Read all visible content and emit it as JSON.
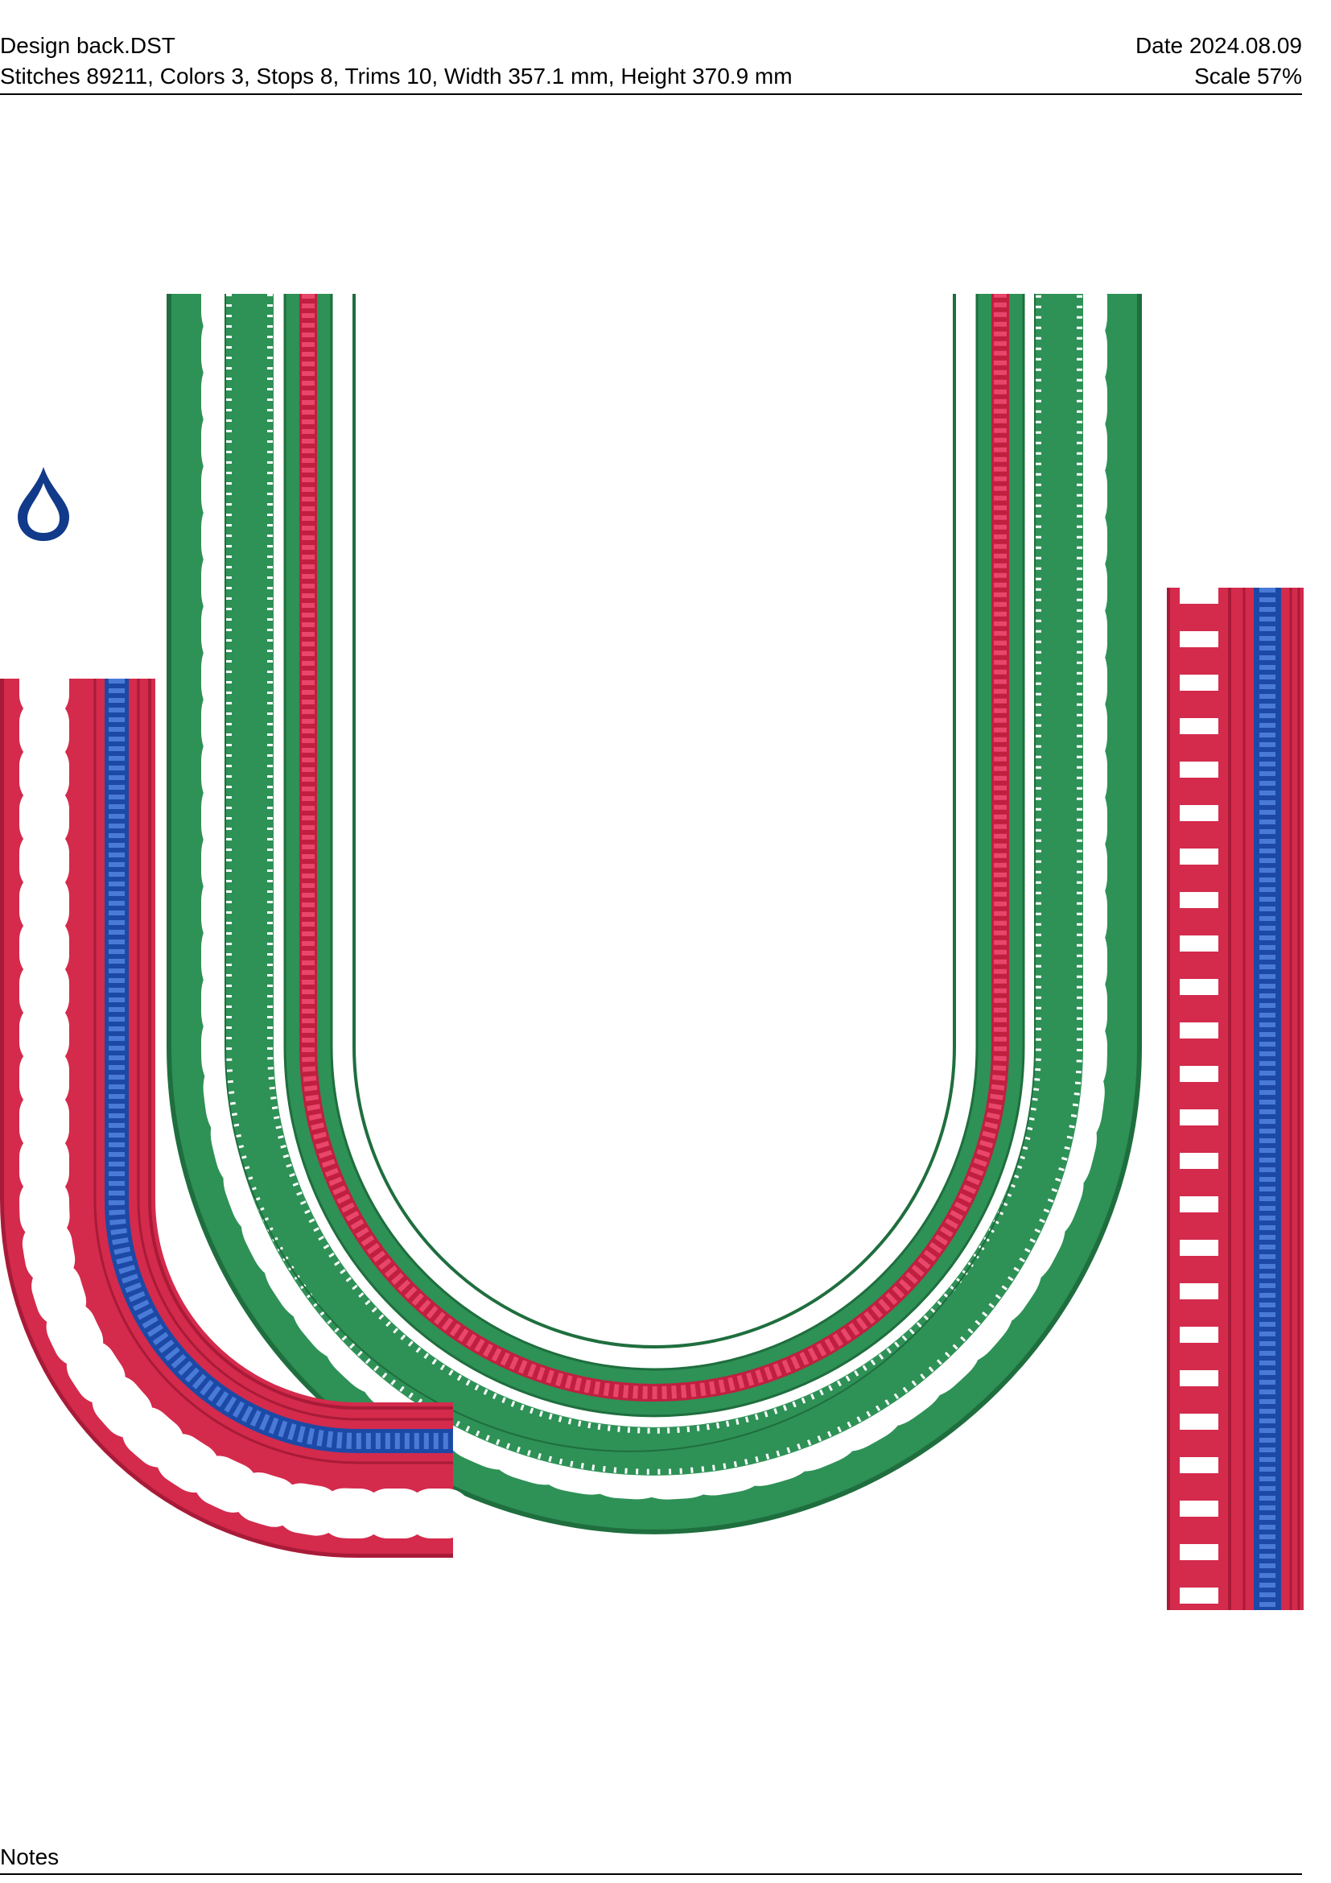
{
  "header": {
    "file_name": "Design back.DST",
    "summary": "Stitches 89211, Colors 3, Stops 8, Trims 10, Width 357.1 mm, Height 370.9 mm",
    "date": "Date 2024.08.09",
    "scale": "Scale 57%"
  },
  "footer": {
    "notes_label": "Notes"
  },
  "colors": {
    "green": "#2e9156",
    "green_dark": "#1f6e3e",
    "red": "#d42a4c",
    "red_dark": "#a81b38",
    "blue": "#2a57b8",
    "blue_dark": "#123a8a"
  }
}
